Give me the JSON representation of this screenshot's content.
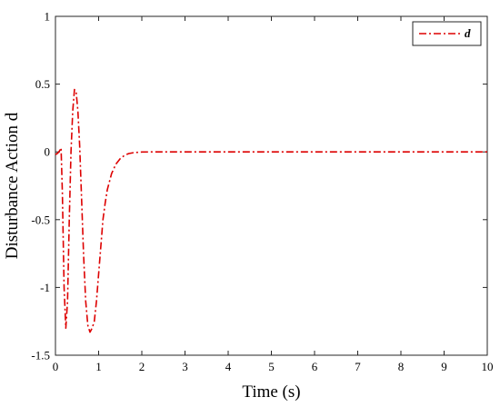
{
  "chart_data": {
    "type": "line",
    "xlabel": "Time (s)",
    "ylabel": "Disturbance Action d",
    "xlim": [
      0,
      10
    ],
    "ylim": [
      -1.5,
      1
    ],
    "x_ticks": [
      0,
      1,
      2,
      3,
      4,
      5,
      6,
      7,
      8,
      9,
      10
    ],
    "y_ticks": [
      -1.5,
      -1,
      -0.5,
      0,
      0.5,
      1
    ],
    "x_tick_labels": [
      "0",
      "1",
      "2",
      "3",
      "4",
      "5",
      "6",
      "7",
      "8",
      "9",
      "10"
    ],
    "y_tick_labels": [
      "-1.5",
      "-1",
      "-0.5",
      "0",
      "0.5",
      "1"
    ],
    "grid": false,
    "legend_position": "top-right",
    "series": [
      {
        "name": "d",
        "color": "#dd0000",
        "line_style": "dash-dot",
        "x": [
          0,
          0.05,
          0.1,
          0.13,
          0.16,
          0.2,
          0.24,
          0.28,
          0.32,
          0.36,
          0.4,
          0.44,
          0.48,
          0.52,
          0.56,
          0.6,
          0.65,
          0.7,
          0.75,
          0.8,
          0.85,
          0.9,
          0.95,
          1.0,
          1.05,
          1.1,
          1.15,
          1.2,
          1.3,
          1.4,
          1.5,
          1.6,
          1.7,
          1.8,
          1.9,
          2.0,
          2.2,
          2.5,
          3,
          4,
          5,
          6,
          7,
          8,
          9,
          10
        ],
        "y": [
          -0.02,
          -0.01,
          0.01,
          0.03,
          -0.3,
          -1.0,
          -1.3,
          -1.1,
          -0.5,
          0.0,
          0.3,
          0.46,
          0.44,
          0.3,
          0.05,
          -0.3,
          -0.75,
          -1.1,
          -1.28,
          -1.33,
          -1.3,
          -1.25,
          -1.1,
          -0.9,
          -0.7,
          -0.5,
          -0.38,
          -0.28,
          -0.16,
          -0.09,
          -0.05,
          -0.025,
          -0.012,
          -0.006,
          -0.003,
          -0.001,
          0,
          0,
          0,
          0,
          0,
          0,
          0,
          0,
          0,
          0
        ]
      }
    ]
  }
}
